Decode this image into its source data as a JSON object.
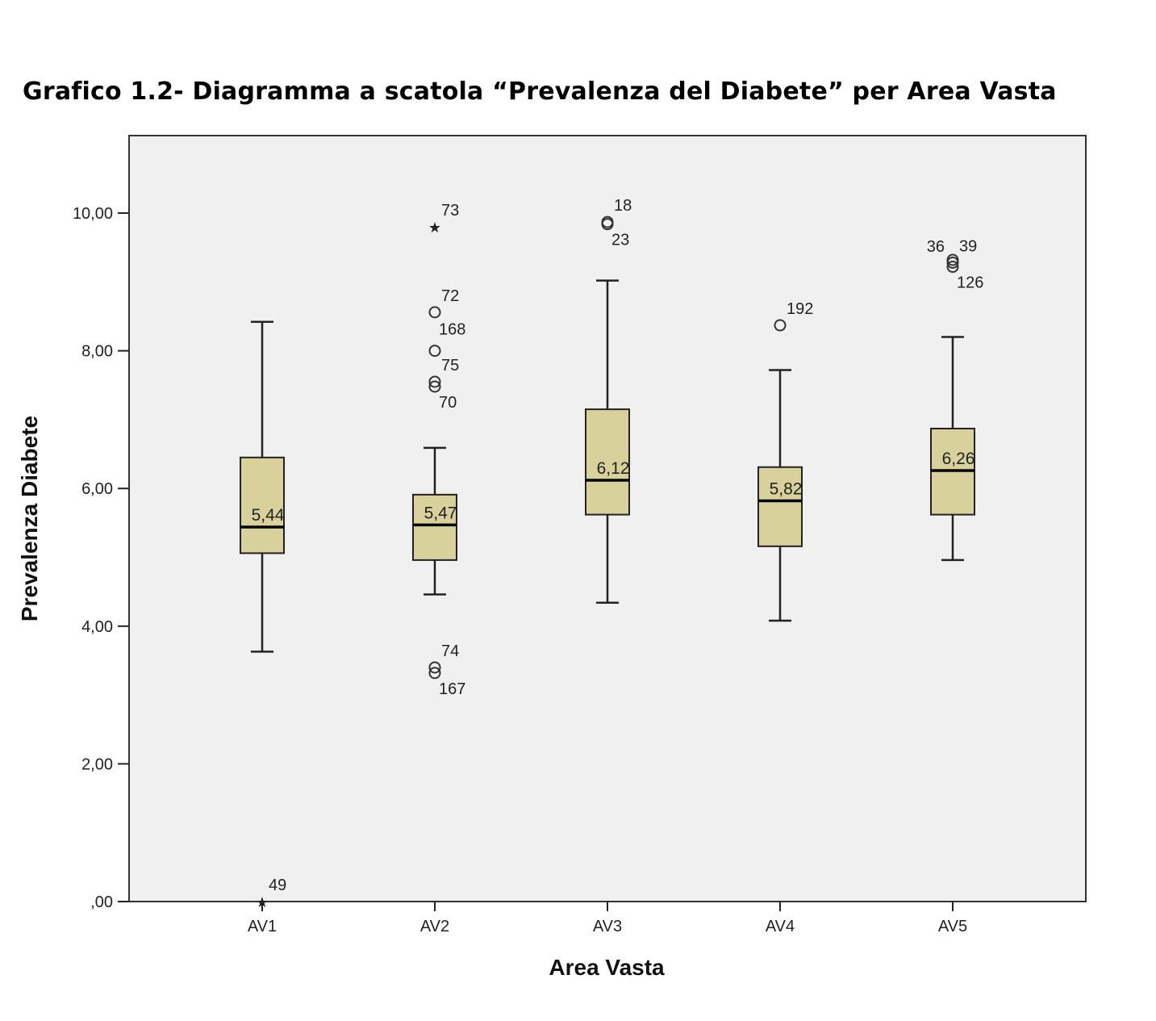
{
  "title": "Grafico 1.2- Diagramma a scatola “Prevalenza del Diabete” per Area Vasta",
  "chart_data": {
    "type": "boxplot",
    "xlabel": "Area Vasta",
    "ylabel": "Prevalenza Diabete",
    "ylim": [
      0,
      11.1
    ],
    "yticks": [
      0,
      2,
      4,
      6,
      8,
      10
    ],
    "ytick_labels": [
      ",00",
      "2,00",
      "4,00",
      "6,00",
      "8,00",
      "10,00"
    ],
    "categories": [
      "AV1",
      "AV2",
      "AV3",
      "AV4",
      "AV5"
    ],
    "grid": false,
    "colors": {
      "box_fill": "#d8d19c",
      "plot_background": "#f0f0f0",
      "stroke": "#222222"
    },
    "boxes": [
      {
        "category": "AV1",
        "whisker_low": 3.63,
        "q1": 5.06,
        "median": 5.44,
        "q3": 6.45,
        "whisker_high": 8.42,
        "median_label": "5,44",
        "outliers": [
          {
            "value": 0.0,
            "kind": "extreme",
            "label": "49",
            "label_side": "right-up"
          }
        ]
      },
      {
        "category": "AV2",
        "whisker_low": 4.46,
        "q1": 4.96,
        "median": 5.47,
        "q3": 5.91,
        "whisker_high": 6.59,
        "median_label": "5,47",
        "outliers": [
          {
            "value": 9.8,
            "kind": "extreme",
            "label": "73",
            "label_side": "right-up"
          },
          {
            "value": 8.56,
            "kind": "outlier",
            "label": "72",
            "label_side": "right-up"
          },
          {
            "value": 8.0,
            "kind": "outlier",
            "label": "168",
            "label_side": "right-above"
          },
          {
            "value": 7.55,
            "kind": "outlier",
            "label": "75",
            "label_side": "right-up"
          },
          {
            "value": 7.48,
            "kind": "outlier",
            "label": "70",
            "label_side": "right-down"
          },
          {
            "value": 3.4,
            "kind": "outlier",
            "label": "74",
            "label_side": "right-up"
          },
          {
            "value": 3.32,
            "kind": "outlier",
            "label": "167",
            "label_side": "right-down"
          }
        ]
      },
      {
        "category": "AV3",
        "whisker_low": 4.34,
        "q1": 5.62,
        "median": 6.12,
        "q3": 7.15,
        "whisker_high": 9.02,
        "median_label": "6,12",
        "outliers": [
          {
            "value": 9.87,
            "kind": "outlier",
            "label": "18",
            "label_side": "right-up"
          },
          {
            "value": 9.84,
            "kind": "outlier",
            "label": "23",
            "label_side": "right-down"
          }
        ]
      },
      {
        "category": "AV4",
        "whisker_low": 4.08,
        "q1": 5.16,
        "median": 5.82,
        "q3": 6.31,
        "whisker_high": 7.72,
        "median_label": "5,82",
        "outliers": [
          {
            "value": 8.37,
            "kind": "outlier",
            "label": "192",
            "label_side": "right-up"
          }
        ]
      },
      {
        "category": "AV5",
        "whisker_low": 4.96,
        "q1": 5.62,
        "median": 6.26,
        "q3": 6.87,
        "whisker_high": 8.2,
        "median_label": "6,26",
        "outliers": [
          {
            "value": 9.32,
            "kind": "outlier",
            "label": "36",
            "label_side": "left-up"
          },
          {
            "value": 9.28,
            "kind": "outlier",
            "label": "39",
            "label_side": "right-up"
          },
          {
            "value": 9.22,
            "kind": "outlier",
            "label": "126",
            "label_side": "right-down"
          }
        ]
      }
    ]
  }
}
